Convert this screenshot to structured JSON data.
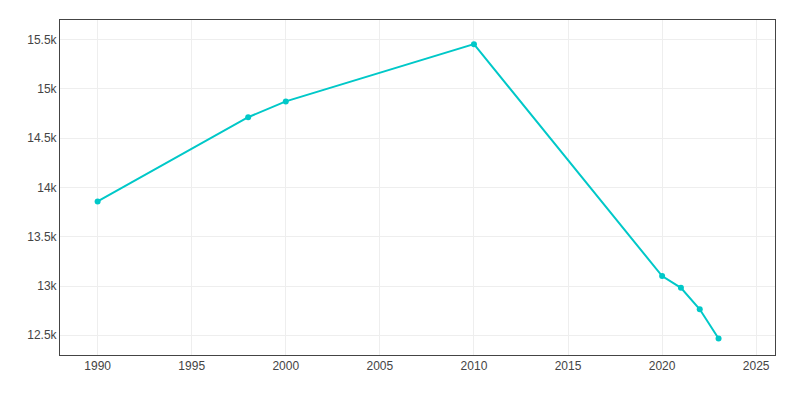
{
  "chart_data": {
    "type": "line",
    "x": [
      1990,
      1998,
      2000,
      2010,
      2020,
      2021,
      2022,
      2023
    ],
    "values": [
      13858,
      14713,
      14874,
      15455,
      13101,
      12982,
      12764,
      12467
    ],
    "color": "#00C8C8",
    "marker": "circle",
    "xlim": [
      1988,
      2026
    ],
    "ylim": [
      12300,
      15700
    ],
    "xticks": [
      1990,
      1995,
      2000,
      2005,
      2010,
      2015,
      2020,
      2025
    ],
    "yticks": [
      {
        "value": 12500,
        "label": "12.5k"
      },
      {
        "value": 13000,
        "label": "13k"
      },
      {
        "value": 13500,
        "label": "13.5k"
      },
      {
        "value": 14000,
        "label": "14k"
      },
      {
        "value": 14500,
        "label": "14.5k"
      },
      {
        "value": 15000,
        "label": "15k"
      },
      {
        "value": 15500,
        "label": "15.5k"
      }
    ],
    "grid": true
  }
}
